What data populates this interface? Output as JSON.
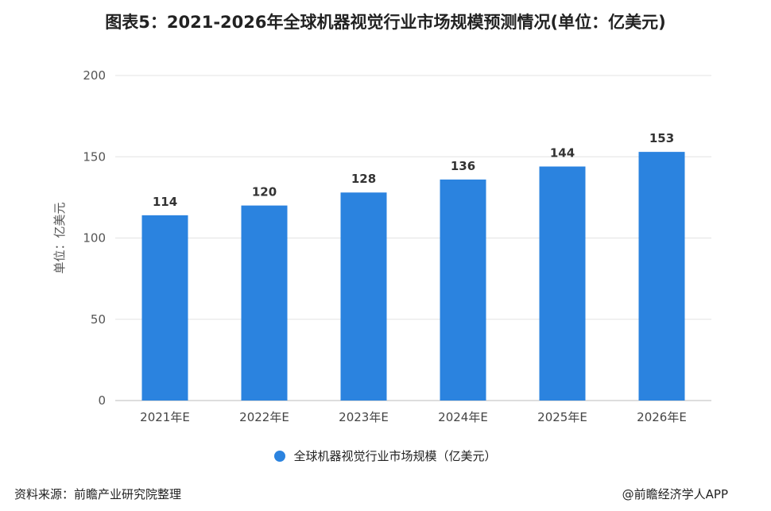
{
  "title": "图表5：2021-2026年全球机器视觉行业市场规模预测情况(单位：亿美元)",
  "source": "资料来源：前瞻产业研究院整理",
  "credit": "@前瞻经济学人APP",
  "chart_data": {
    "type": "bar",
    "categories": [
      "2021年E",
      "2022年E",
      "2023年E",
      "2024年E",
      "2025年E",
      "2026年E"
    ],
    "series": [
      {
        "name": "全球机器视觉行业市场规模（亿美元）",
        "values": [
          114,
          120,
          128,
          136,
          144,
          153
        ]
      }
    ],
    "ylabel": "单位：亿美元",
    "ylim": [
      0,
      200
    ],
    "yticks": [
      0,
      50,
      100,
      150,
      200
    ],
    "grid": true,
    "legend_position": "bottom",
    "bar_color": "#2b83df"
  }
}
